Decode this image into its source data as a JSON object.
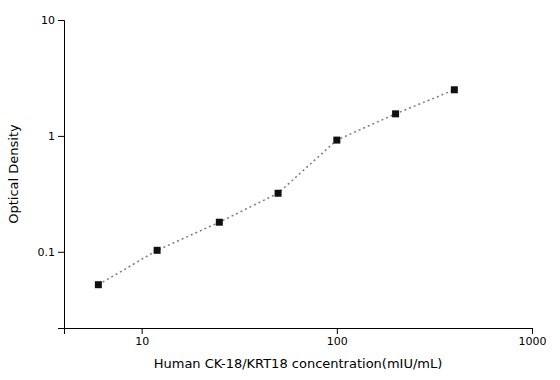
{
  "chart_data": {
    "type": "line",
    "x": [
      6,
      12,
      25,
      50,
      100,
      200,
      400
    ],
    "values": [
      0.052,
      0.103,
      0.18,
      0.32,
      0.92,
      1.55,
      2.5
    ],
    "xlabel": "Human CK-18/KRT18 concentration(mIU/mL)",
    "ylabel": "Optical Density",
    "xlim": [
      4,
      1000
    ],
    "ylim": [
      0.022,
      10
    ],
    "xticks": [
      10,
      100,
      1000
    ],
    "yticks": [
      0.1,
      1,
      10
    ],
    "log": true,
    "grid": false,
    "color": "#111111",
    "marker": "square",
    "line_style": "dotted"
  }
}
